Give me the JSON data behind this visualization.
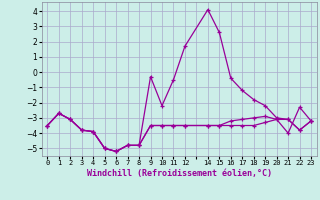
{
  "xlabel": "Windchill (Refroidissement éolien,°C)",
  "background_color": "#cceee8",
  "grid_color": "#aaaacc",
  "line_color": "#990099",
  "xlim": [
    -0.5,
    23.5
  ],
  "ylim": [
    -5.5,
    4.6
  ],
  "yticks": [
    -5,
    -4,
    -3,
    -2,
    -1,
    0,
    1,
    2,
    3,
    4
  ],
  "xticks": [
    0,
    1,
    2,
    3,
    4,
    5,
    6,
    7,
    8,
    9,
    10,
    11,
    12,
    13,
    14,
    15,
    16,
    17,
    18,
    19,
    20,
    21,
    22,
    23
  ],
  "xtick_labels": [
    "0",
    "1",
    "2",
    "3",
    "4",
    "5",
    "6",
    "7",
    "8",
    "9",
    "10",
    "11",
    "12",
    "",
    "14",
    "15",
    "16",
    "17",
    "18",
    "19",
    "20",
    "21",
    "22",
    "23"
  ],
  "series1_x": [
    0,
    1,
    2,
    3,
    4,
    5,
    6,
    7,
    8,
    9,
    10,
    11,
    12,
    14,
    15,
    16,
    17,
    18,
    19,
    20,
    21,
    22,
    23
  ],
  "series1_y": [
    -3.5,
    -2.7,
    -3.1,
    -3.8,
    -3.9,
    -5.0,
    -5.2,
    -4.8,
    -4.8,
    -0.3,
    -2.2,
    -0.5,
    1.7,
    4.1,
    2.6,
    -0.4,
    -1.2,
    -1.8,
    -2.2,
    -3.0,
    -3.1,
    -3.8,
    -3.2
  ],
  "series2_x": [
    0,
    1,
    2,
    3,
    4,
    5,
    6,
    7,
    8,
    9,
    10,
    11,
    12,
    14,
    15,
    16,
    17,
    18,
    19,
    20,
    21,
    22,
    23
  ],
  "series2_y": [
    -3.5,
    -2.7,
    -3.1,
    -3.8,
    -3.9,
    -5.0,
    -5.2,
    -4.8,
    -4.8,
    -3.5,
    -3.5,
    -3.5,
    -3.5,
    -3.5,
    -3.5,
    -3.5,
    -3.5,
    -3.5,
    -3.3,
    -3.1,
    -3.1,
    -3.8,
    -3.2
  ],
  "series3_x": [
    0,
    1,
    2,
    3,
    4,
    5,
    6,
    7,
    8,
    9,
    10,
    11,
    12,
    14,
    15,
    16,
    17,
    18,
    19,
    20,
    21,
    22,
    23
  ],
  "series3_y": [
    -3.5,
    -2.7,
    -3.1,
    -3.8,
    -3.9,
    -5.0,
    -5.2,
    -4.8,
    -4.8,
    -3.5,
    -3.5,
    -3.5,
    -3.5,
    -3.5,
    -3.5,
    -3.2,
    -3.1,
    -3.0,
    -2.9,
    -3.1,
    -4.0,
    -2.3,
    -3.2
  ]
}
